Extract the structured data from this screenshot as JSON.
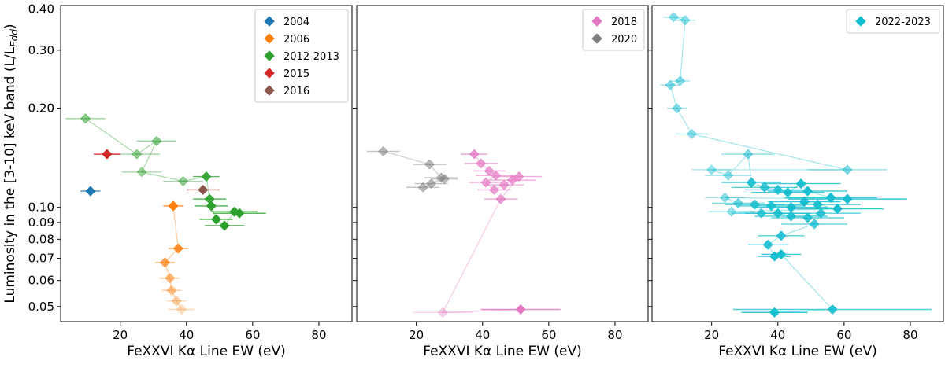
{
  "chart_data": {
    "type": "scatter",
    "shared": {
      "xlabel": "FeXXVI Kα Line EW (eV)",
      "ylabel": "Luminosity in the [3-10] keV band (L/L",
      "ylabel_sub": "Edd",
      "ylabel_close": ")",
      "xlim": [
        2,
        90
      ],
      "ylim": [
        0.045,
        0.41
      ],
      "yscale": "log",
      "xticks": [
        20,
        40,
        60,
        80
      ],
      "xtick_labels": [
        "20",
        "40",
        "60",
        "80"
      ],
      "yticks": [
        0.05,
        0.06,
        0.07,
        0.08,
        0.09,
        0.1,
        0.2,
        0.3,
        0.4
      ],
      "ytick_labels": [
        "0.05",
        "0.06",
        "0.07",
        "0.08",
        "0.09",
        "0.10",
        "0.20",
        "0.30",
        "0.40"
      ]
    },
    "panels": [
      {
        "legend_position": "top-right",
        "series": [
          {
            "name": "2004",
            "color": "#1f77b4",
            "points": [
              {
                "x": 11,
                "y": 0.112,
                "xerr": 3,
                "a": 1
              }
            ]
          },
          {
            "name": "2006",
            "color": "#ff7f0e",
            "points": [
              {
                "x": 36,
                "y": 0.101,
                "xerr": 3,
                "a": 1
              },
              {
                "x": 37.5,
                "y": 0.075,
                "xerr": 3,
                "a": 0.85
              },
              {
                "x": 33.5,
                "y": 0.068,
                "xerr": 3,
                "a": 0.7
              },
              {
                "x": 35,
                "y": 0.061,
                "xerr": 3,
                "a": 0.55
              },
              {
                "x": 35.5,
                "y": 0.056,
                "xerr": 3,
                "a": 0.45
              },
              {
                "x": 37,
                "y": 0.052,
                "xerr": 3,
                "a": 0.35
              },
              {
                "x": 38.5,
                "y": 0.049,
                "xerr": 4,
                "a": 0.25
              }
            ]
          },
          {
            "name": "2012-2013",
            "color": "#2ca02c",
            "points": [
              {
                "x": 9.5,
                "y": 0.186,
                "xerr": 6,
                "a": 0.55
              },
              {
                "x": 25,
                "y": 0.145,
                "xerr": 7,
                "a": 0.5
              },
              {
                "x": 31,
                "y": 0.159,
                "xerr": 6,
                "a": 0.55
              },
              {
                "x": 26.5,
                "y": 0.128,
                "xerr": 6,
                "a": 0.45
              },
              {
                "x": 39,
                "y": 0.12,
                "xerr": 6,
                "a": 0.5
              },
              {
                "x": 46,
                "y": 0.124,
                "xerr": 4,
                "a": 0.9
              },
              {
                "x": 47,
                "y": 0.106,
                "xerr": 5,
                "a": 0.9
              },
              {
                "x": 47.5,
                "y": 0.101,
                "xerr": 5,
                "a": 1
              },
              {
                "x": 49,
                "y": 0.092,
                "xerr": 5,
                "a": 1
              },
              {
                "x": 51.5,
                "y": 0.088,
                "xerr": 6,
                "a": 1
              },
              {
                "x": 54.5,
                "y": 0.097,
                "xerr": 7,
                "a": 1
              },
              {
                "x": 56,
                "y": 0.096,
                "xerr": 8,
                "a": 1
              }
            ]
          },
          {
            "name": "2015",
            "color": "#d62728",
            "points": [
              {
                "x": 16,
                "y": 0.145,
                "xerr": 4,
                "a": 1
              }
            ]
          },
          {
            "name": "2016",
            "color": "#8c564b",
            "points": [
              {
                "x": 45,
                "y": 0.113,
                "xerr": 5,
                "a": 1
              }
            ]
          }
        ]
      },
      {
        "legend_position": "top-right",
        "series": [
          {
            "name": "2018",
            "color": "#e377c2",
            "points": [
              {
                "x": 37.5,
                "y": 0.145,
                "xerr": 4,
                "a": 0.75
              },
              {
                "x": 39.5,
                "y": 0.136,
                "xerr": 5,
                "a": 0.7
              },
              {
                "x": 42,
                "y": 0.129,
                "xerr": 5,
                "a": 0.7
              },
              {
                "x": 44,
                "y": 0.125,
                "xerr": 6,
                "a": 0.7
              },
              {
                "x": 41,
                "y": 0.119,
                "xerr": 5,
                "a": 0.7
              },
              {
                "x": 43.5,
                "y": 0.113,
                "xerr": 5,
                "a": 0.7
              },
              {
                "x": 46.5,
                "y": 0.117,
                "xerr": 6,
                "a": 0.7
              },
              {
                "x": 49,
                "y": 0.121,
                "xerr": 7,
                "a": 0.7
              },
              {
                "x": 51,
                "y": 0.124,
                "xerr": 7,
                "a": 0.7
              },
              {
                "x": 45.5,
                "y": 0.106,
                "xerr": 5,
                "a": 0.7
              },
              {
                "x": 28,
                "y": 0.048,
                "xerr": 9,
                "a": 0.35
              },
              {
                "x": 51.5,
                "y": 0.049,
                "xerr": 12,
                "a": 1
              }
            ]
          },
          {
            "name": "2020",
            "color": "#7f7f7f",
            "points": [
              {
                "x": 10,
                "y": 0.148,
                "xerr": 5,
                "a": 0.55
              },
              {
                "x": 24,
                "y": 0.135,
                "xerr": 5,
                "a": 0.55
              },
              {
                "x": 27.5,
                "y": 0.123,
                "xerr": 5,
                "a": 0.55
              },
              {
                "x": 24.5,
                "y": 0.118,
                "xerr": 5,
                "a": 0.55
              },
              {
                "x": 22,
                "y": 0.115,
                "xerr": 5,
                "a": 0.55
              },
              {
                "x": 28.5,
                "y": 0.122,
                "xerr": 4,
                "a": 0.55
              }
            ]
          }
        ]
      },
      {
        "legend_position": "top-right",
        "series": [
          {
            "name": "2022-2023",
            "color": "#17becf",
            "points": [
              {
                "x": 8.5,
                "y": 0.378,
                "xerr": 3,
                "a": 0.5
              },
              {
                "x": 12,
                "y": 0.37,
                "xerr": 3,
                "a": 0.5
              },
              {
                "x": 10.5,
                "y": 0.242,
                "xerr": 3,
                "a": 0.5
              },
              {
                "x": 7.5,
                "y": 0.235,
                "xerr": 3,
                "a": 0.5
              },
              {
                "x": 9.5,
                "y": 0.2,
                "xerr": 3,
                "a": 0.5
              },
              {
                "x": 14,
                "y": 0.167,
                "xerr": 5,
                "a": 0.5
              },
              {
                "x": 61,
                "y": 0.13,
                "xerr": 12,
                "a": 0.55
              },
              {
                "x": 20,
                "y": 0.13,
                "xerr": 6,
                "a": 0.45
              },
              {
                "x": 25,
                "y": 0.125,
                "xerr": 7,
                "a": 0.5
              },
              {
                "x": 31,
                "y": 0.145,
                "xerr": 8,
                "a": 0.55
              },
              {
                "x": 32,
                "y": 0.119,
                "xerr": 9,
                "a": 0.9
              },
              {
                "x": 36,
                "y": 0.115,
                "xerr": 10,
                "a": 0.85
              },
              {
                "x": 40,
                "y": 0.113,
                "xerr": 10,
                "a": 0.9
              },
              {
                "x": 43,
                "y": 0.111,
                "xerr": 11,
                "a": 0.95
              },
              {
                "x": 47,
                "y": 0.118,
                "xerr": 12,
                "a": 0.95
              },
              {
                "x": 49,
                "y": 0.112,
                "xerr": 12,
                "a": 1
              },
              {
                "x": 56,
                "y": 0.107,
                "xerr": 14,
                "a": 1
              },
              {
                "x": 61,
                "y": 0.106,
                "xerr": 18,
                "a": 1
              },
              {
                "x": 24,
                "y": 0.107,
                "xerr": 6,
                "a": 0.5
              },
              {
                "x": 28,
                "y": 0.103,
                "xerr": 8,
                "a": 0.6
              },
              {
                "x": 33,
                "y": 0.102,
                "xerr": 9,
                "a": 0.85
              },
              {
                "x": 38,
                "y": 0.101,
                "xerr": 10,
                "a": 0.9
              },
              {
                "x": 44,
                "y": 0.1,
                "xerr": 11,
                "a": 0.95
              },
              {
                "x": 48,
                "y": 0.104,
                "xerr": 11,
                "a": 1
              },
              {
                "x": 52,
                "y": 0.102,
                "xerr": 13,
                "a": 0.95
              },
              {
                "x": 58,
                "y": 0.099,
                "xerr": 14,
                "a": 1
              },
              {
                "x": 26,
                "y": 0.097,
                "xerr": 7,
                "a": 0.45
              },
              {
                "x": 35,
                "y": 0.096,
                "xerr": 9,
                "a": 0.8
              },
              {
                "x": 40,
                "y": 0.096,
                "xerr": 10,
                "a": 0.9
              },
              {
                "x": 44,
                "y": 0.094,
                "xerr": 11,
                "a": 0.9
              },
              {
                "x": 49,
                "y": 0.093,
                "xerr": 11,
                "a": 0.85
              },
              {
                "x": 53,
                "y": 0.096,
                "xerr": 12,
                "a": 0.85
              },
              {
                "x": 51,
                "y": 0.089,
                "xerr": 10,
                "a": 0.8
              },
              {
                "x": 41,
                "y": 0.082,
                "xerr": 7,
                "a": 0.9
              },
              {
                "x": 37,
                "y": 0.077,
                "xerr": 6,
                "a": 0.9
              },
              {
                "x": 39,
                "y": 0.071,
                "xerr": 5,
                "a": 1
              },
              {
                "x": 41,
                "y": 0.072,
                "xerr": 6,
                "a": 1
              },
              {
                "x": 56.5,
                "y": 0.049,
                "xerr": 30,
                "a": 0.9
              },
              {
                "x": 39,
                "y": 0.048,
                "xerr": 10,
                "a": 1
              }
            ]
          }
        ]
      }
    ]
  }
}
